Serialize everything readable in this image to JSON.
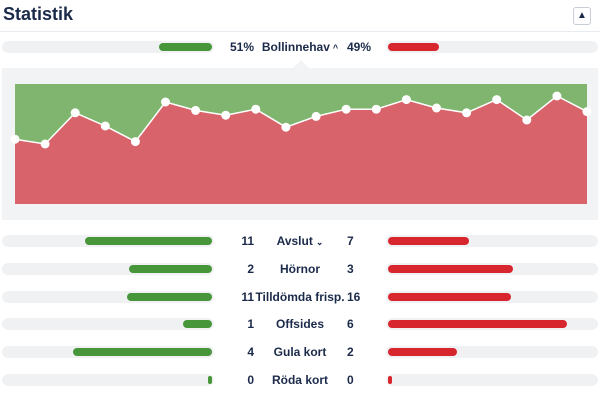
{
  "header": {
    "title": "Statistik",
    "collapse_icon": "chevron-up-icon"
  },
  "colors": {
    "home": "#47963a",
    "away": "#d8262e",
    "chart_home_area": "#7fb56e",
    "chart_away_area": "#d9636a"
  },
  "possession": {
    "home_value": "51%",
    "label": "Bollinnehav",
    "away_value": "49%",
    "home_fraction": 0.51,
    "away_fraction": 0.49
  },
  "chart_data": {
    "type": "area",
    "series_values": [
      0.54,
      0.5,
      0.76,
      0.65,
      0.52,
      0.85,
      0.78,
      0.74,
      0.79,
      0.64,
      0.73,
      0.79,
      0.79,
      0.87,
      0.8,
      0.76,
      0.87,
      0.7,
      0.9,
      0.77
    ]
  },
  "stats": [
    {
      "label": "Avslut",
      "home": "11",
      "away": "7",
      "home_frac": 0.61,
      "away_frac": 0.39,
      "has_chevron": true
    },
    {
      "label": "Hörnor",
      "home": "2",
      "away": "3",
      "home_frac": 0.4,
      "away_frac": 0.6,
      "has_chevron": false
    },
    {
      "label": "Tilldömda frisp.",
      "home": "11",
      "away": "16",
      "home_frac": 0.41,
      "away_frac": 0.59,
      "has_chevron": false
    },
    {
      "label": "Offsides",
      "home": "1",
      "away": "6",
      "home_frac": 0.14,
      "away_frac": 0.86,
      "has_chevron": false
    },
    {
      "label": "Gula kort",
      "home": "4",
      "away": "2",
      "home_frac": 0.67,
      "away_frac": 0.33,
      "has_chevron": false
    },
    {
      "label": "Röda kort",
      "home": "0",
      "away": "0",
      "home_frac": 0.02,
      "away_frac": 0.02,
      "has_chevron": false
    }
  ]
}
